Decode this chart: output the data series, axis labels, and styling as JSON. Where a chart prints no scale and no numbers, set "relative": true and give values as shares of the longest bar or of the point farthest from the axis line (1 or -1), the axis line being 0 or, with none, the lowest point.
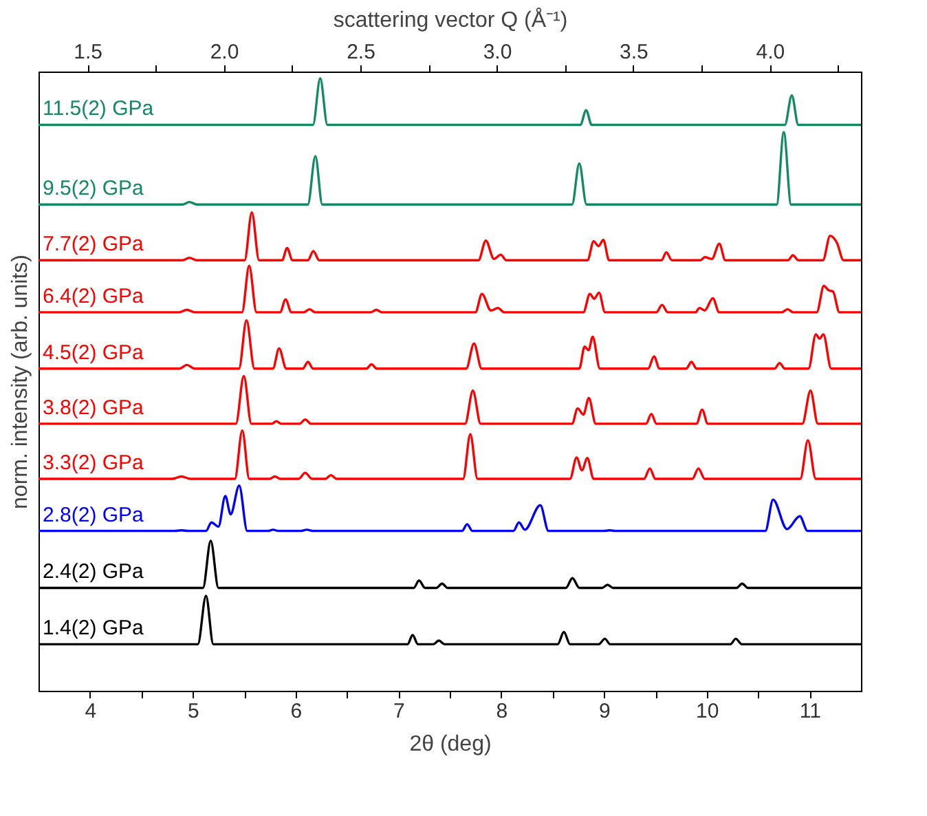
{
  "chart_data": {
    "type": "line",
    "relative": true,
    "xlabel": "2θ (deg)",
    "ylabel": "norm. intensity (arb. units)",
    "x2label": "scattering vector Q (Å⁻¹)",
    "xlim": [
      3.5,
      11.5
    ],
    "xticks": [
      4,
      {
        "value": 4.5,
        "label": null
      },
      5,
      {
        "value": 5.5,
        "label": null
      },
      6,
      {
        "value": 6.5,
        "label": null
      },
      7,
      {
        "value": 7.5,
        "label": null
      },
      8,
      {
        "value": 8.5,
        "label": null
      },
      9,
      {
        "value": 9.5,
        "label": null
      },
      10,
      {
        "value": 10.5,
        "label": null
      },
      11
    ],
    "x2lim": [
      1.321,
      4.334
    ],
    "x2ticks": [
      1.5,
      {
        "value": 1.75,
        "label": null
      },
      {
        "value": 2,
        "label": "2.0"
      },
      {
        "value": 2.25,
        "label": null
      },
      2.5,
      {
        "value": 2.75,
        "label": null
      },
      {
        "value": 3,
        "label": "3.0"
      },
      {
        "value": 3.25,
        "label": null
      },
      3.5,
      {
        "value": 3.75,
        "label": null
      },
      {
        "value": 4,
        "label": "4.0"
      },
      {
        "value": 4.25,
        "label": null
      }
    ],
    "series": [
      {
        "name": "11.5(2) GPa",
        "color": "#138a63",
        "x": [
          3.5,
          6.17,
          6.24,
          6.31,
          8.77,
          8.827,
          8.88,
          10.76,
          10.827,
          10.89,
          11.5
        ],
        "values": [
          0.924,
          0.924,
          1,
          0.924,
          0.924,
          0.948,
          0.924,
          0.924,
          0.972,
          0.924,
          0.924
        ]
      },
      {
        "name": "9.5(2) GPa",
        "color": "#138a63",
        "x": [
          3.5,
          4.9,
          4.968,
          5.04,
          6.12,
          6.193,
          6.26,
          8.69,
          8.76,
          8.83,
          10.68,
          10.749,
          10.82,
          11.5
        ],
        "values": [
          0.794,
          0.794,
          0.798,
          0.794,
          0.794,
          0.873,
          0.794,
          0.794,
          0.861,
          0.794,
          0.794,
          0.912,
          0.794,
          0.794
        ]
      },
      {
        "name": "7.7(2) GPa",
        "color": "#ff0000",
        "x": [
          3.5,
          4.9,
          4.968,
          5.04,
          5.505,
          5.575,
          5.645,
          5.87,
          5.918,
          5.97,
          6.12,
          6.173,
          6.23,
          7.78,
          7.851,
          7.93,
          7.996,
          8.05,
          8.84,
          8.9,
          8.947,
          8.994,
          9.05,
          9.56,
          9.607,
          9.66,
          9.94,
          9.981,
          10.05,
          10.122,
          10.18,
          10.79,
          10.838,
          10.89,
          11.13,
          11.2,
          11.267,
          11.33,
          11.5
        ],
        "values": [
          0.703,
          0.703,
          0.707,
          0.703,
          0.703,
          0.781,
          0.703,
          0.703,
          0.723,
          0.703,
          0.703,
          0.718,
          0.703,
          0.703,
          0.735,
          0.705,
          0.712,
          0.703,
          0.703,
          0.734,
          0.726,
          0.736,
          0.703,
          0.703,
          0.716,
          0.703,
          0.703,
          0.708,
          0.705,
          0.73,
          0.703,
          0.703,
          0.711,
          0.703,
          0.703,
          0.743,
          0.731,
          0.703,
          0.703
        ]
      },
      {
        "name": "6.4(2) GPa",
        "color": "#ff0000",
        "x": [
          3.5,
          4.87,
          4.943,
          5.02,
          5.48,
          5.549,
          5.62,
          5.85,
          5.903,
          5.96,
          6.08,
          6.137,
          6.19,
          6.73,
          6.786,
          6.84,
          7.75,
          7.813,
          7.9,
          7.969,
          8.03,
          8.8,
          8.863,
          8.905,
          8.952,
          9.01,
          9.51,
          9.565,
          9.62,
          9.89,
          9.929,
          9.98,
          10.059,
          10.12,
          10.73,
          10.786,
          10.84,
          11.07,
          11.139,
          11.185,
          11.227,
          11.29,
          11.5
        ],
        "values": [
          0.618,
          0.618,
          0.622,
          0.618,
          0.618,
          0.694,
          0.618,
          0.618,
          0.639,
          0.618,
          0.618,
          0.623,
          0.618,
          0.618,
          0.622,
          0.618,
          0.618,
          0.648,
          0.621,
          0.625,
          0.618,
          0.618,
          0.648,
          0.64,
          0.65,
          0.618,
          0.618,
          0.63,
          0.618,
          0.618,
          0.625,
          0.621,
          0.641,
          0.618,
          0.618,
          0.623,
          0.618,
          0.618,
          0.661,
          0.654,
          0.652,
          0.618,
          0.618
        ]
      },
      {
        "name": "4.5(2) GPa",
        "color": "#ff0000",
        "x": [
          3.5,
          4.87,
          4.943,
          5.02,
          5.45,
          5.523,
          5.6,
          5.78,
          5.84,
          5.91,
          6.07,
          6.121,
          6.17,
          6.69,
          6.739,
          6.79,
          7.66,
          7.736,
          7.81,
          8.76,
          8.812,
          8.85,
          8.89,
          8.96,
          9.43,
          9.487,
          9.54,
          9.8,
          9.851,
          9.9,
          10.66,
          10.708,
          10.76,
          10.99,
          11.061,
          11.098,
          11.134,
          11.21,
          11.5
        ],
        "values": [
          0.526,
          0.526,
          0.532,
          0.526,
          0.526,
          0.605,
          0.526,
          0.526,
          0.559,
          0.526,
          0.526,
          0.537,
          0.526,
          0.526,
          0.533,
          0.526,
          0.526,
          0.567,
          0.526,
          0.526,
          0.562,
          0.556,
          0.578,
          0.526,
          0.526,
          0.546,
          0.526,
          0.526,
          0.537,
          0.526,
          0.526,
          0.535,
          0.526,
          0.526,
          0.582,
          0.575,
          0.582,
          0.526,
          0.526
        ]
      },
      {
        "name": "3.8(2) GPa",
        "color": "#ff0000",
        "x": [
          3.5,
          5.42,
          5.497,
          5.57,
          5.77,
          5.814,
          5.86,
          6.04,
          6.094,
          6.15,
          7.65,
          7.725,
          7.8,
          8.69,
          8.744,
          8.8,
          8.853,
          8.92,
          9.41,
          9.461,
          9.51,
          9.9,
          9.955,
          10.01,
          10.93,
          11.009,
          11.08,
          11.5
        ],
        "values": [
          0.436,
          0.436,
          0.514,
          0.436,
          0.436,
          0.44,
          0.436,
          0.436,
          0.443,
          0.436,
          0.436,
          0.49,
          0.436,
          0.436,
          0.461,
          0.451,
          0.478,
          0.436,
          0.436,
          0.452,
          0.436,
          0.436,
          0.459,
          0.436,
          0.436,
          0.49,
          0.436,
          0.436
        ]
      },
      {
        "name": "3.3(2) GPa",
        "color": "#ff0000",
        "x": [
          3.5,
          4.8,
          4.89,
          4.98,
          5.41,
          5.482,
          5.55,
          5.75,
          5.799,
          5.85,
          6.03,
          6.094,
          6.16,
          6.29,
          6.344,
          6.4,
          7.63,
          7.7,
          7.77,
          8.67,
          8.734,
          8.786,
          8.838,
          8.9,
          9.39,
          9.446,
          9.5,
          9.86,
          9.919,
          9.98,
          10.91,
          10.984,
          11.06,
          11.5
        ],
        "values": [
          0.346,
          0.346,
          0.35,
          0.346,
          0.346,
          0.425,
          0.346,
          0.346,
          0.35,
          0.346,
          0.346,
          0.356,
          0.346,
          0.346,
          0.352,
          0.346,
          0.346,
          0.419,
          0.346,
          0.346,
          0.381,
          0.36,
          0.38,
          0.346,
          0.346,
          0.363,
          0.346,
          0.346,
          0.363,
          0.346,
          0.346,
          0.409,
          0.346,
          0.346
        ]
      },
      {
        "name": "2.8(2) GPa",
        "color": "#0000ff",
        "x": [
          3.5,
          4.82,
          4.89,
          4.96,
          5.13,
          5.182,
          5.25,
          5.317,
          5.369,
          5.452,
          5.53,
          5.73,
          5.783,
          5.83,
          6.05,
          6.11,
          6.17,
          7.62,
          7.669,
          7.72,
          8.12,
          8.173,
          8.23,
          8.381,
          8.46,
          9.0,
          9.056,
          9.11,
          10.57,
          10.645,
          10.78,
          10.905,
          10.98,
          11.5
        ],
        "values": [
          0.261,
          0.261,
          0.262,
          0.261,
          0.261,
          0.275,
          0.268,
          0.318,
          0.288,
          0.335,
          0.261,
          0.261,
          0.263,
          0.261,
          0.261,
          0.263,
          0.261,
          0.261,
          0.272,
          0.261,
          0.261,
          0.275,
          0.263,
          0.303,
          0.261,
          0.261,
          0.262,
          0.261,
          0.261,
          0.312,
          0.264,
          0.285,
          0.261,
          0.261
        ]
      },
      {
        "name": "2.4(2) GPa",
        "color": "#000000",
        "x": [
          3.5,
          5.1,
          5.175,
          5.25,
          7.15,
          7.201,
          7.26,
          7.37,
          7.425,
          7.48,
          8.63,
          8.693,
          8.76,
          8.98,
          9.035,
          9.09,
          10.29,
          10.344,
          10.4,
          11.5
        ],
        "values": [
          0.168,
          0.168,
          0.245,
          0.168,
          0.168,
          0.18,
          0.168,
          0.168,
          0.175,
          0.168,
          0.168,
          0.184,
          0.168,
          0.168,
          0.173,
          0.168,
          0.168,
          0.175,
          0.168,
          0.168
        ]
      },
      {
        "name": "1.4(2) GPa",
        "color": "#000000",
        "x": [
          3.5,
          5.05,
          5.129,
          5.2,
          7.09,
          7.139,
          7.19,
          7.34,
          7.394,
          7.45,
          8.55,
          8.61,
          8.67,
          8.95,
          9.009,
          9.06,
          10.23,
          10.282,
          10.34,
          11.5
        ],
        "values": [
          0.076,
          0.076,
          0.155,
          0.076,
          0.076,
          0.091,
          0.076,
          0.076,
          0.082,
          0.076,
          0.076,
          0.096,
          0.076,
          0.076,
          0.085,
          0.076,
          0.076,
          0.085,
          0.076,
          0.076
        ]
      }
    ]
  }
}
